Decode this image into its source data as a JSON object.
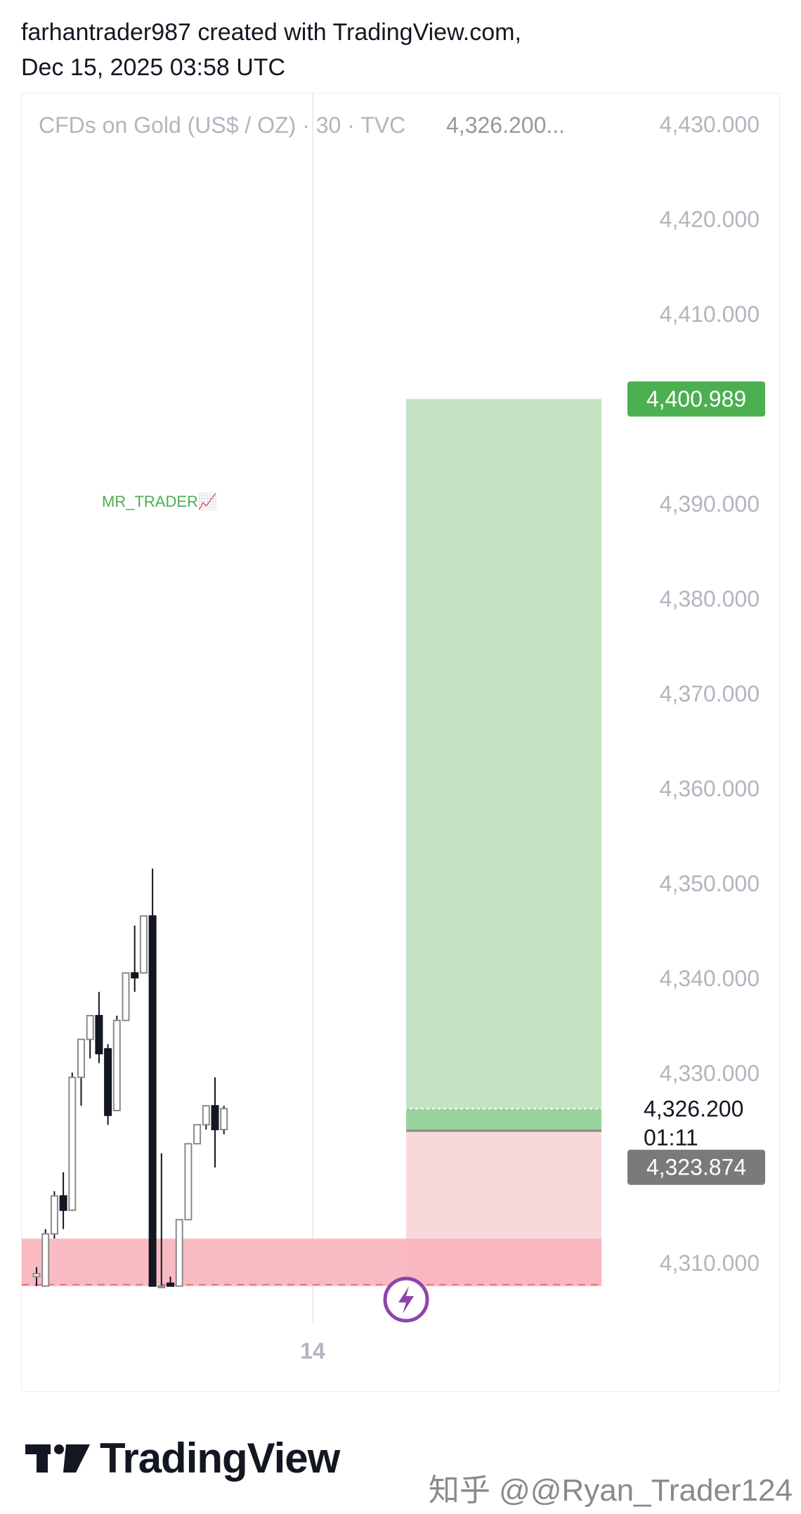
{
  "header": {
    "line1": "farhantrader987 created with TradingView.com,",
    "line2": "Dec 15, 2025 03:58 UTC"
  },
  "chart": {
    "symbol_line": "CFDs on Gold (US$ / OZ) · 30 · TVC",
    "symbol_price": "4,326.200...",
    "annotation": "MR_TRADER📈",
    "x_tick": "14",
    "current_price_label": "4,326.200",
    "countdown_label": "01:11"
  },
  "brand": {
    "logo_text": "TradingView",
    "watermark": "知乎 @@Ryan_Trader124"
  },
  "colors": {
    "profit_zone": "#c3e3c4",
    "profit_zone_inner": "#99d29d",
    "loss_zone": "#f9d8db",
    "bottom_band": "#f8b4bb",
    "target_label_bg": "#4caf50",
    "entry_label_bg": "#7a7a7a",
    "axis_text": "#b2b5be",
    "lightning_icon": "#8e44ad"
  },
  "chart_data": {
    "type": "candlestick",
    "y_axis_ticks": [
      "4,430.000",
      "4,420.000",
      "4,410.000",
      "4,390.000",
      "4,380.000",
      "4,370.000",
      "4,360.000",
      "4,350.000",
      "4,340.000",
      "4,330.000",
      "4,310.000"
    ],
    "y_axis_values": [
      4430,
      4420,
      4410,
      4390,
      4380,
      4370,
      4360,
      4350,
      4340,
      4330,
      4310
    ],
    "ylim": [
      4307.5,
      4434.5
    ],
    "x_ticks": [
      "14"
    ],
    "timeframe": "30",
    "long_position": {
      "target_label": "4,400.989",
      "target": 4400.989,
      "entry_label": "4,323.874",
      "entry": 4323.874,
      "stop_below": 4307.5
    },
    "current_price": 4326.2,
    "candles": [
      {
        "o": 4308.5,
        "h": 4309.5,
        "l": 4307.5,
        "c": 4308.8
      },
      {
        "o": 4307.5,
        "h": 4313.5,
        "l": 4307.5,
        "c": 4313.0
      },
      {
        "o": 4313.0,
        "h": 4317.5,
        "l": 4312.5,
        "c": 4317.0
      },
      {
        "o": 4317.0,
        "h": 4319.5,
        "l": 4313.5,
        "c": 4315.5
      },
      {
        "o": 4315.5,
        "h": 4330.0,
        "l": 4315.5,
        "c": 4329.5
      },
      {
        "o": 4329.5,
        "h": 4333.5,
        "l": 4326.5,
        "c": 4333.5
      },
      {
        "o": 4333.5,
        "h": 4336.0,
        "l": 4331.5,
        "c": 4336.0
      },
      {
        "o": 4336.0,
        "h": 4338.5,
        "l": 4331.0,
        "c": 4332.0
      },
      {
        "o": 4332.5,
        "h": 4333.0,
        "l": 4324.5,
        "c": 4325.5
      },
      {
        "o": 4326.0,
        "h": 4336.0,
        "l": 4326.0,
        "c": 4335.5
      },
      {
        "o": 4335.5,
        "h": 4340.5,
        "l": 4335.5,
        "c": 4340.5
      },
      {
        "o": 4340.5,
        "h": 4345.5,
        "l": 4338.5,
        "c": 4340.0
      },
      {
        "o": 4340.5,
        "h": 4346.5,
        "l": 4340.5,
        "c": 4346.5
      },
      {
        "o": 4346.5,
        "h": 4351.5,
        "l": 4307.5,
        "c": 4307.5
      },
      {
        "o": 4307.5,
        "h": 4321.5,
        "l": 4307.5,
        "c": 4307.5
      },
      {
        "o": 4307.8,
        "h": 4308.5,
        "l": 4307.5,
        "c": 4307.5
      },
      {
        "o": 4307.5,
        "h": 4314.5,
        "l": 4307.5,
        "c": 4314.5
      },
      {
        "o": 4314.5,
        "h": 4322.5,
        "l": 4314.5,
        "c": 4322.5
      },
      {
        "o": 4322.5,
        "h": 4324.5,
        "l": 4322.5,
        "c": 4324.5
      },
      {
        "o": 4324.5,
        "h": 4326.5,
        "l": 4324.0,
        "c": 4326.5
      },
      {
        "o": 4326.5,
        "h": 4329.5,
        "l": 4320.0,
        "c": 4324.0
      },
      {
        "o": 4324.0,
        "h": 4326.5,
        "l": 4323.5,
        "c": 4326.2
      }
    ]
  }
}
